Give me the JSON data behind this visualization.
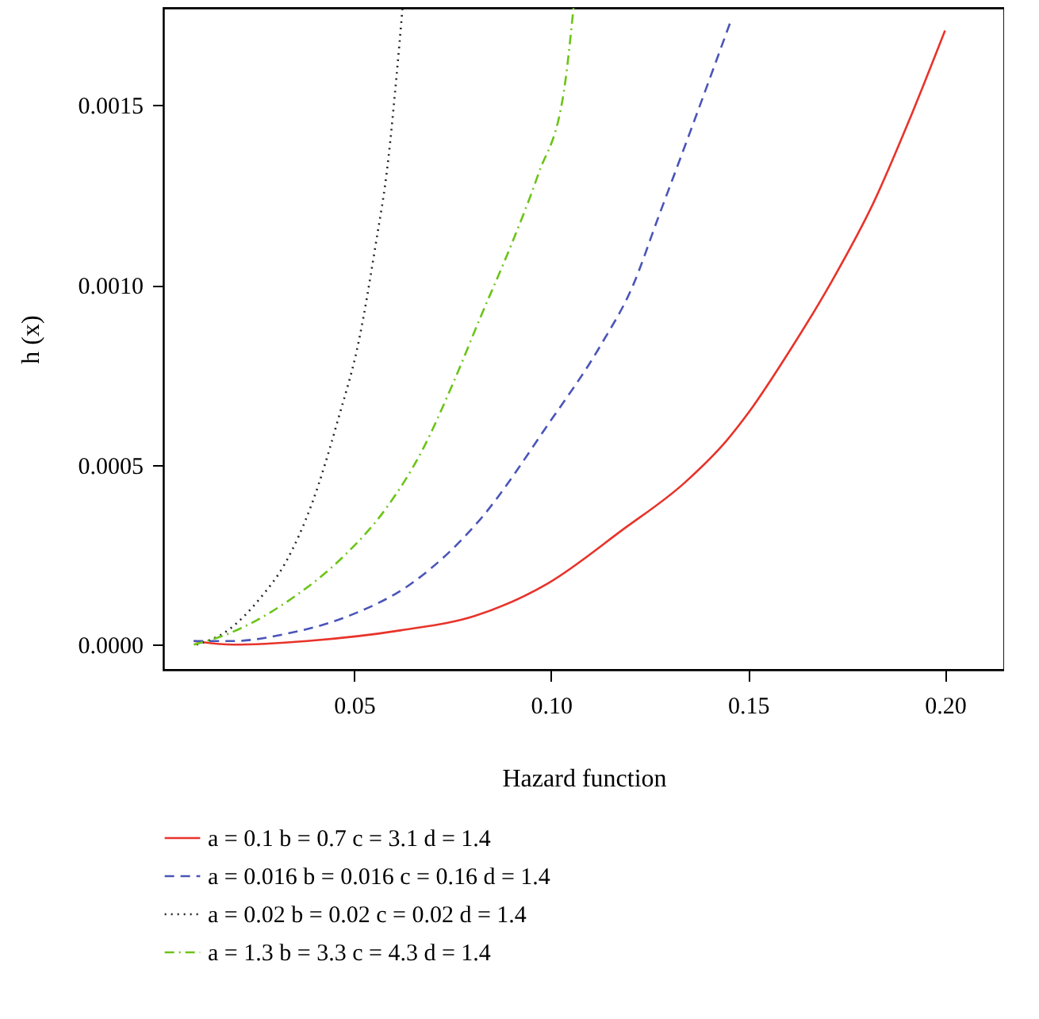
{
  "chart_data": {
    "type": "line",
    "xlabel": "Hazard function",
    "ylabel": "h (x)",
    "xlim": [
      0.0016,
      0.215
    ],
    "ylim": [
      -7e-05,
      0.00177
    ],
    "xticks": [
      0.05,
      {
        "value": 0.1,
        "label": "0.10"
      },
      0.15,
      {
        "value": 0.2,
        "label": "0.20"
      }
    ],
    "yticks": [
      {
        "value": 0,
        "label": "0.0000"
      },
      0.0005,
      {
        "value": 0.001,
        "label": "0.0010"
      },
      0.0015
    ],
    "grid": false,
    "legend": "bottom",
    "series": [
      {
        "name": "a = 0.1 b = 0.7 c = 3.1 d = 1.4",
        "color": "#e8332a",
        "line_style": "solid",
        "x": [
          0.0093,
          0.0193,
          0.038,
          0.062,
          0.0807,
          0.0993,
          0.118,
          0.134,
          0.1447,
          0.15,
          0.1607,
          0.1713,
          0.182,
          0.1913,
          0.2
        ],
        "values": [
          1e-05,
          0.0,
          1e-05,
          4e-05,
          8e-05,
          0.000171,
          0.000318,
          0.000451,
          0.000569,
          0.000643,
          0.000819,
          0.001011,
          0.001232,
          0.001468,
          0.001707
        ]
      },
      {
        "name": "a = 0.016 b = 0.016 c = 0.16 d = 1.4",
        "color": "#4a55b8",
        "line_style": "dashed",
        "x": [
          0.0093,
          0.0193,
          0.0327,
          0.0487,
          0.0647,
          0.082,
          0.0993,
          0.1127,
          0.1207,
          0.1273,
          0.1353,
          0.1457
        ],
        "values": [
          1e-05,
          1e-05,
          3e-05,
          8e-05,
          0.000171,
          0.000348,
          0.000613,
          0.000834,
          0.000996,
          0.00119,
          0.001425,
          0.001736
        ]
      },
      {
        "name": "a = 0.02 b = 0.02 c = 0.02 d = 1.4",
        "color": "#222222",
        "line_style": "dotted",
        "x": [
          0.01,
          0.018,
          0.026,
          0.0327,
          0.0393,
          0.046,
          0.0513,
          0.0553,
          0.0587,
          0.0607,
          0.0623
        ],
        "values": [
          0.0,
          4e-05,
          0.000127,
          0.00023,
          0.000392,
          0.000628,
          0.000849,
          0.0011,
          0.00135,
          0.001571,
          0.00177
        ]
      },
      {
        "name": "a = 1.3 b = 3.3 c = 4.3 d = 1.4",
        "color": "#6cc417",
        "line_style": "dashdot",
        "x": [
          0.0093,
          0.018,
          0.034,
          0.0473,
          0.058,
          0.0673,
          0.0753,
          0.082,
          0.09,
          0.0967,
          0.1033,
          0.1057
        ],
        "values": [
          0.0,
          3e-05,
          0.000127,
          0.000245,
          0.000377,
          0.00054,
          0.000731,
          0.000908,
          0.001114,
          0.001306,
          0.001541,
          0.00177
        ]
      }
    ]
  }
}
